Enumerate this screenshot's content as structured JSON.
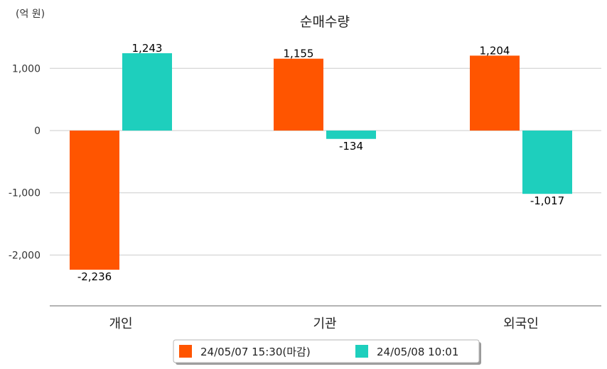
{
  "chart_data": {
    "type": "bar",
    "title": "순매수량",
    "unit_label": "(억 원)",
    "categories": [
      "개인",
      "기관",
      "외국인"
    ],
    "series": [
      {
        "name": "24/05/07 15:30(마감)",
        "color": "#ff5500",
        "values": [
          -2236,
          1155,
          1204
        ]
      },
      {
        "name": "24/05/08 10:01",
        "color": "#1ecfbd",
        "values": [
          1243,
          -134,
          -1017
        ]
      }
    ],
    "data_labels": [
      [
        "-2,236",
        "1,155",
        "1,204"
      ],
      [
        "1,243",
        "-134",
        "-1,017"
      ]
    ],
    "yticks": [
      1000,
      0,
      -1000,
      -2000
    ],
    "ytick_labels": [
      "1,000",
      "0",
      "-1,000",
      "-2,000"
    ],
    "ylim": [
      -2800,
      1400
    ],
    "grid": true,
    "legend_position": "bottom"
  }
}
